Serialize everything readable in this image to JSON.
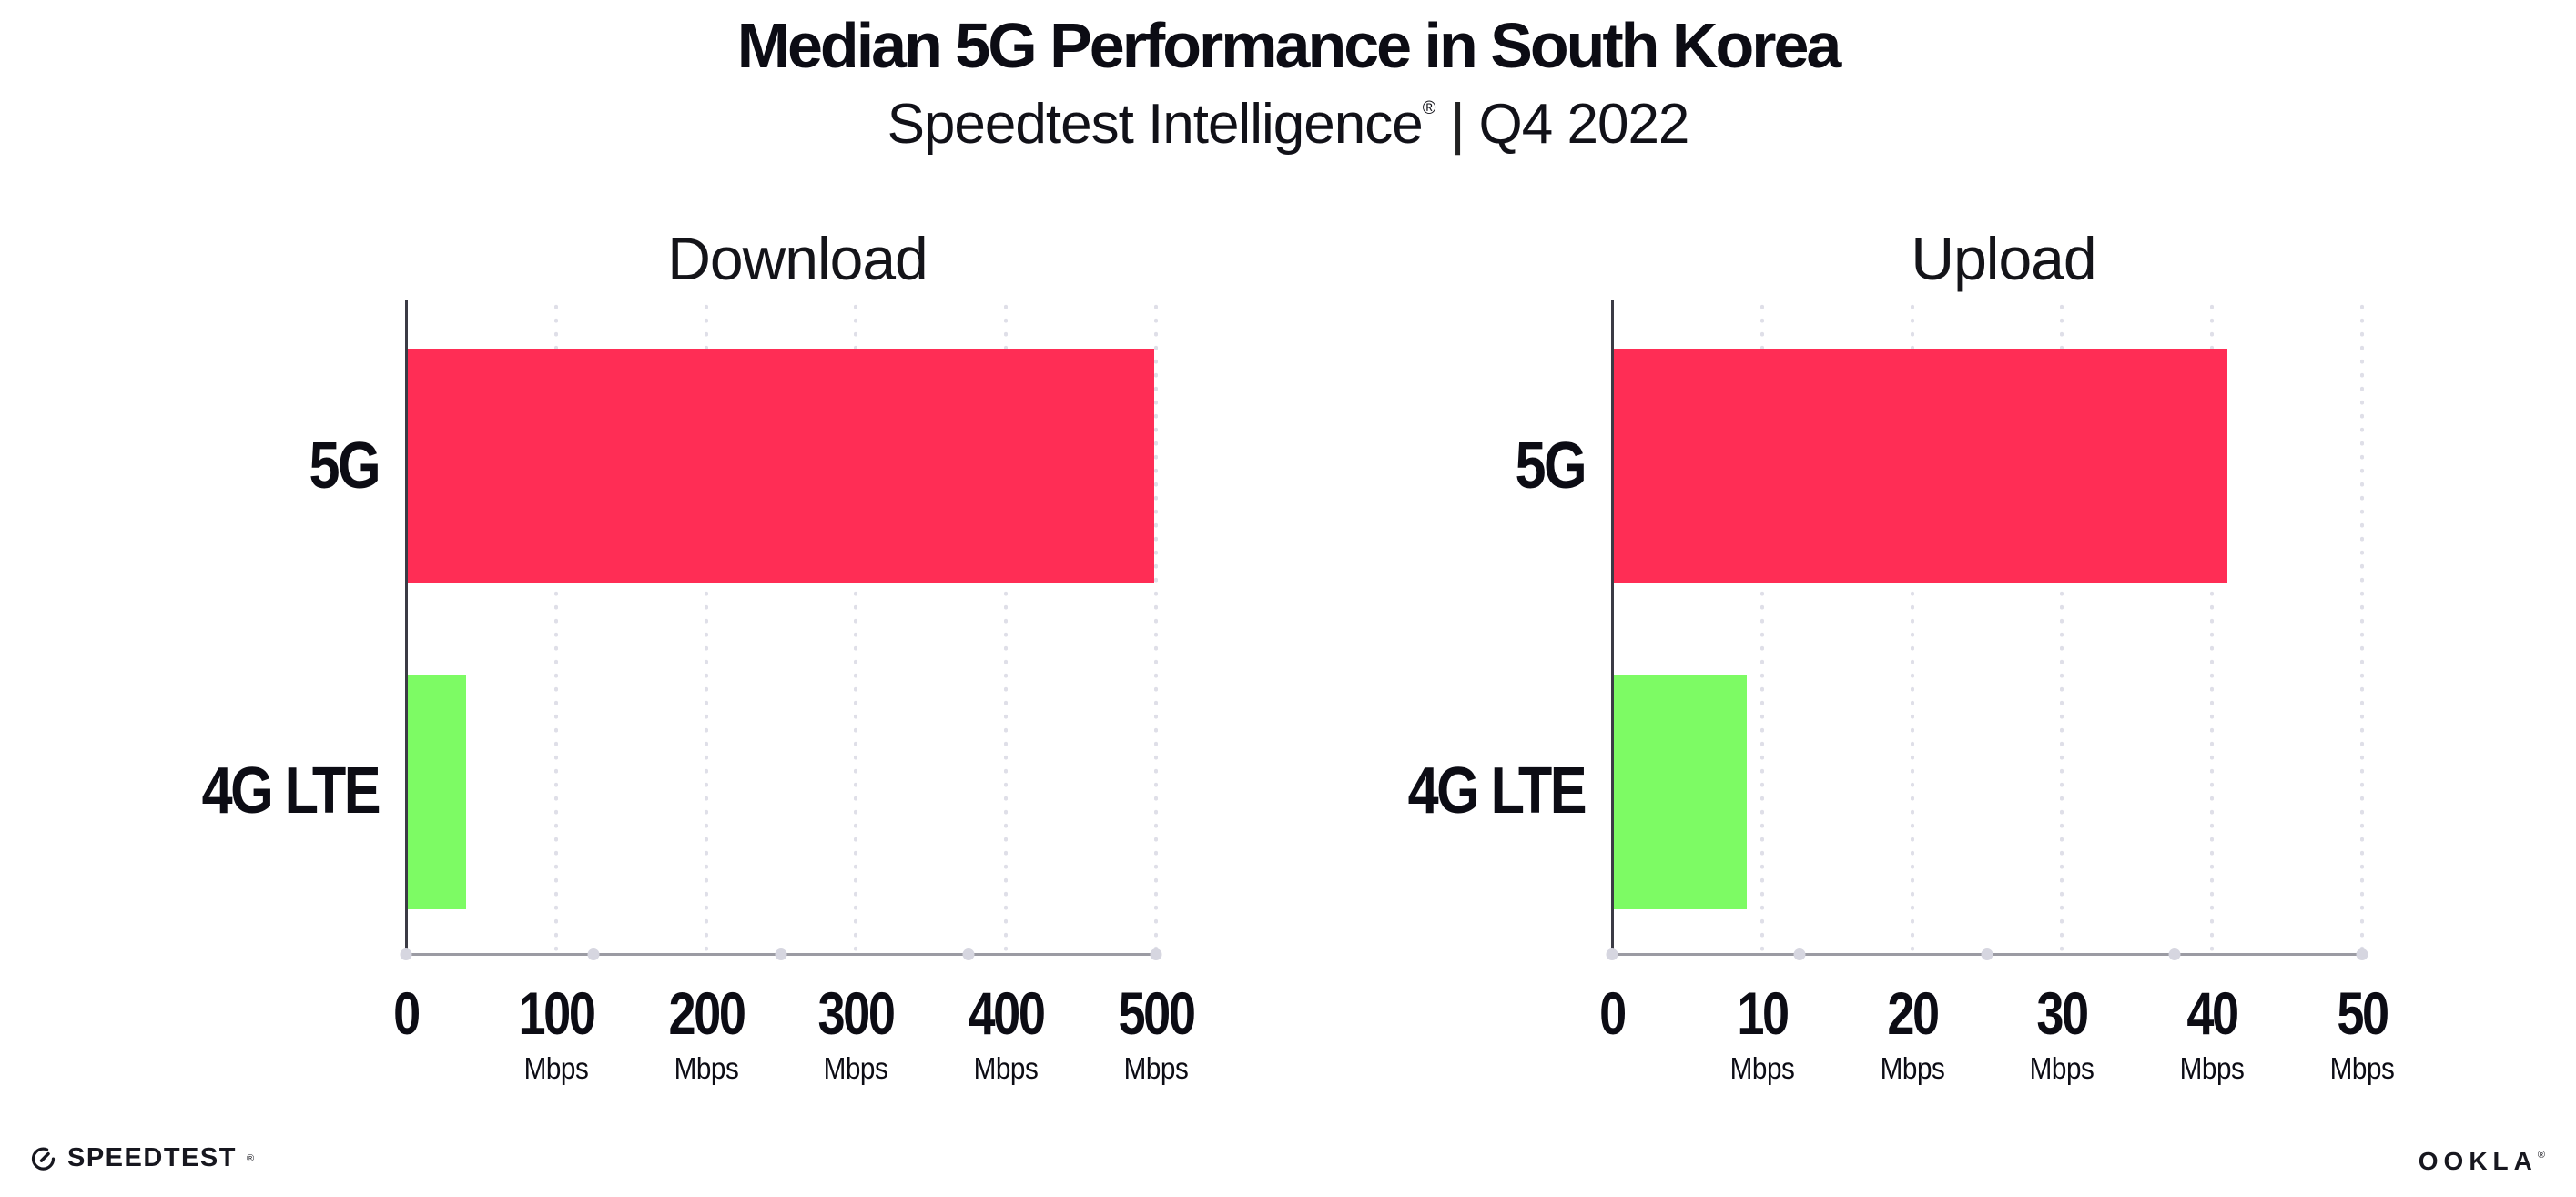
{
  "header": {
    "title": "Median 5G Performance in South Korea",
    "product": "Speedtest Intelligence",
    "registered_mark": "®",
    "separator": "|",
    "period": "Q4 2022"
  },
  "chart_data": {
    "type": "bar",
    "orientation": "horizontal",
    "unit": "Mbps",
    "categories": [
      "5G",
      "4G LTE"
    ],
    "series_colors": {
      "5G": "#FF2D55",
      "4G LTE": "#7DFB64"
    },
    "grid": "vertical-dotted",
    "legend": "none",
    "charts": [
      {
        "title": "Download",
        "xlabel": "Mbps",
        "xlim": [
          0,
          500
        ],
        "ticks": [
          0,
          100,
          200,
          300,
          400,
          500
        ],
        "values": {
          "5G": 499,
          "4G LTE": 40
        }
      },
      {
        "title": "Upload",
        "xlabel": "Mbps",
        "xlim": [
          0,
          50
        ],
        "ticks": [
          0,
          10,
          20,
          30,
          40,
          50
        ],
        "values": {
          "5G": 41,
          "4G LTE": 9
        }
      }
    ]
  },
  "footer": {
    "speedtest_wordmark": "SPEEDTEST",
    "speedtest_mark": "®",
    "ookla_wordmark": "OOKLA",
    "ookla_mark": "®"
  }
}
